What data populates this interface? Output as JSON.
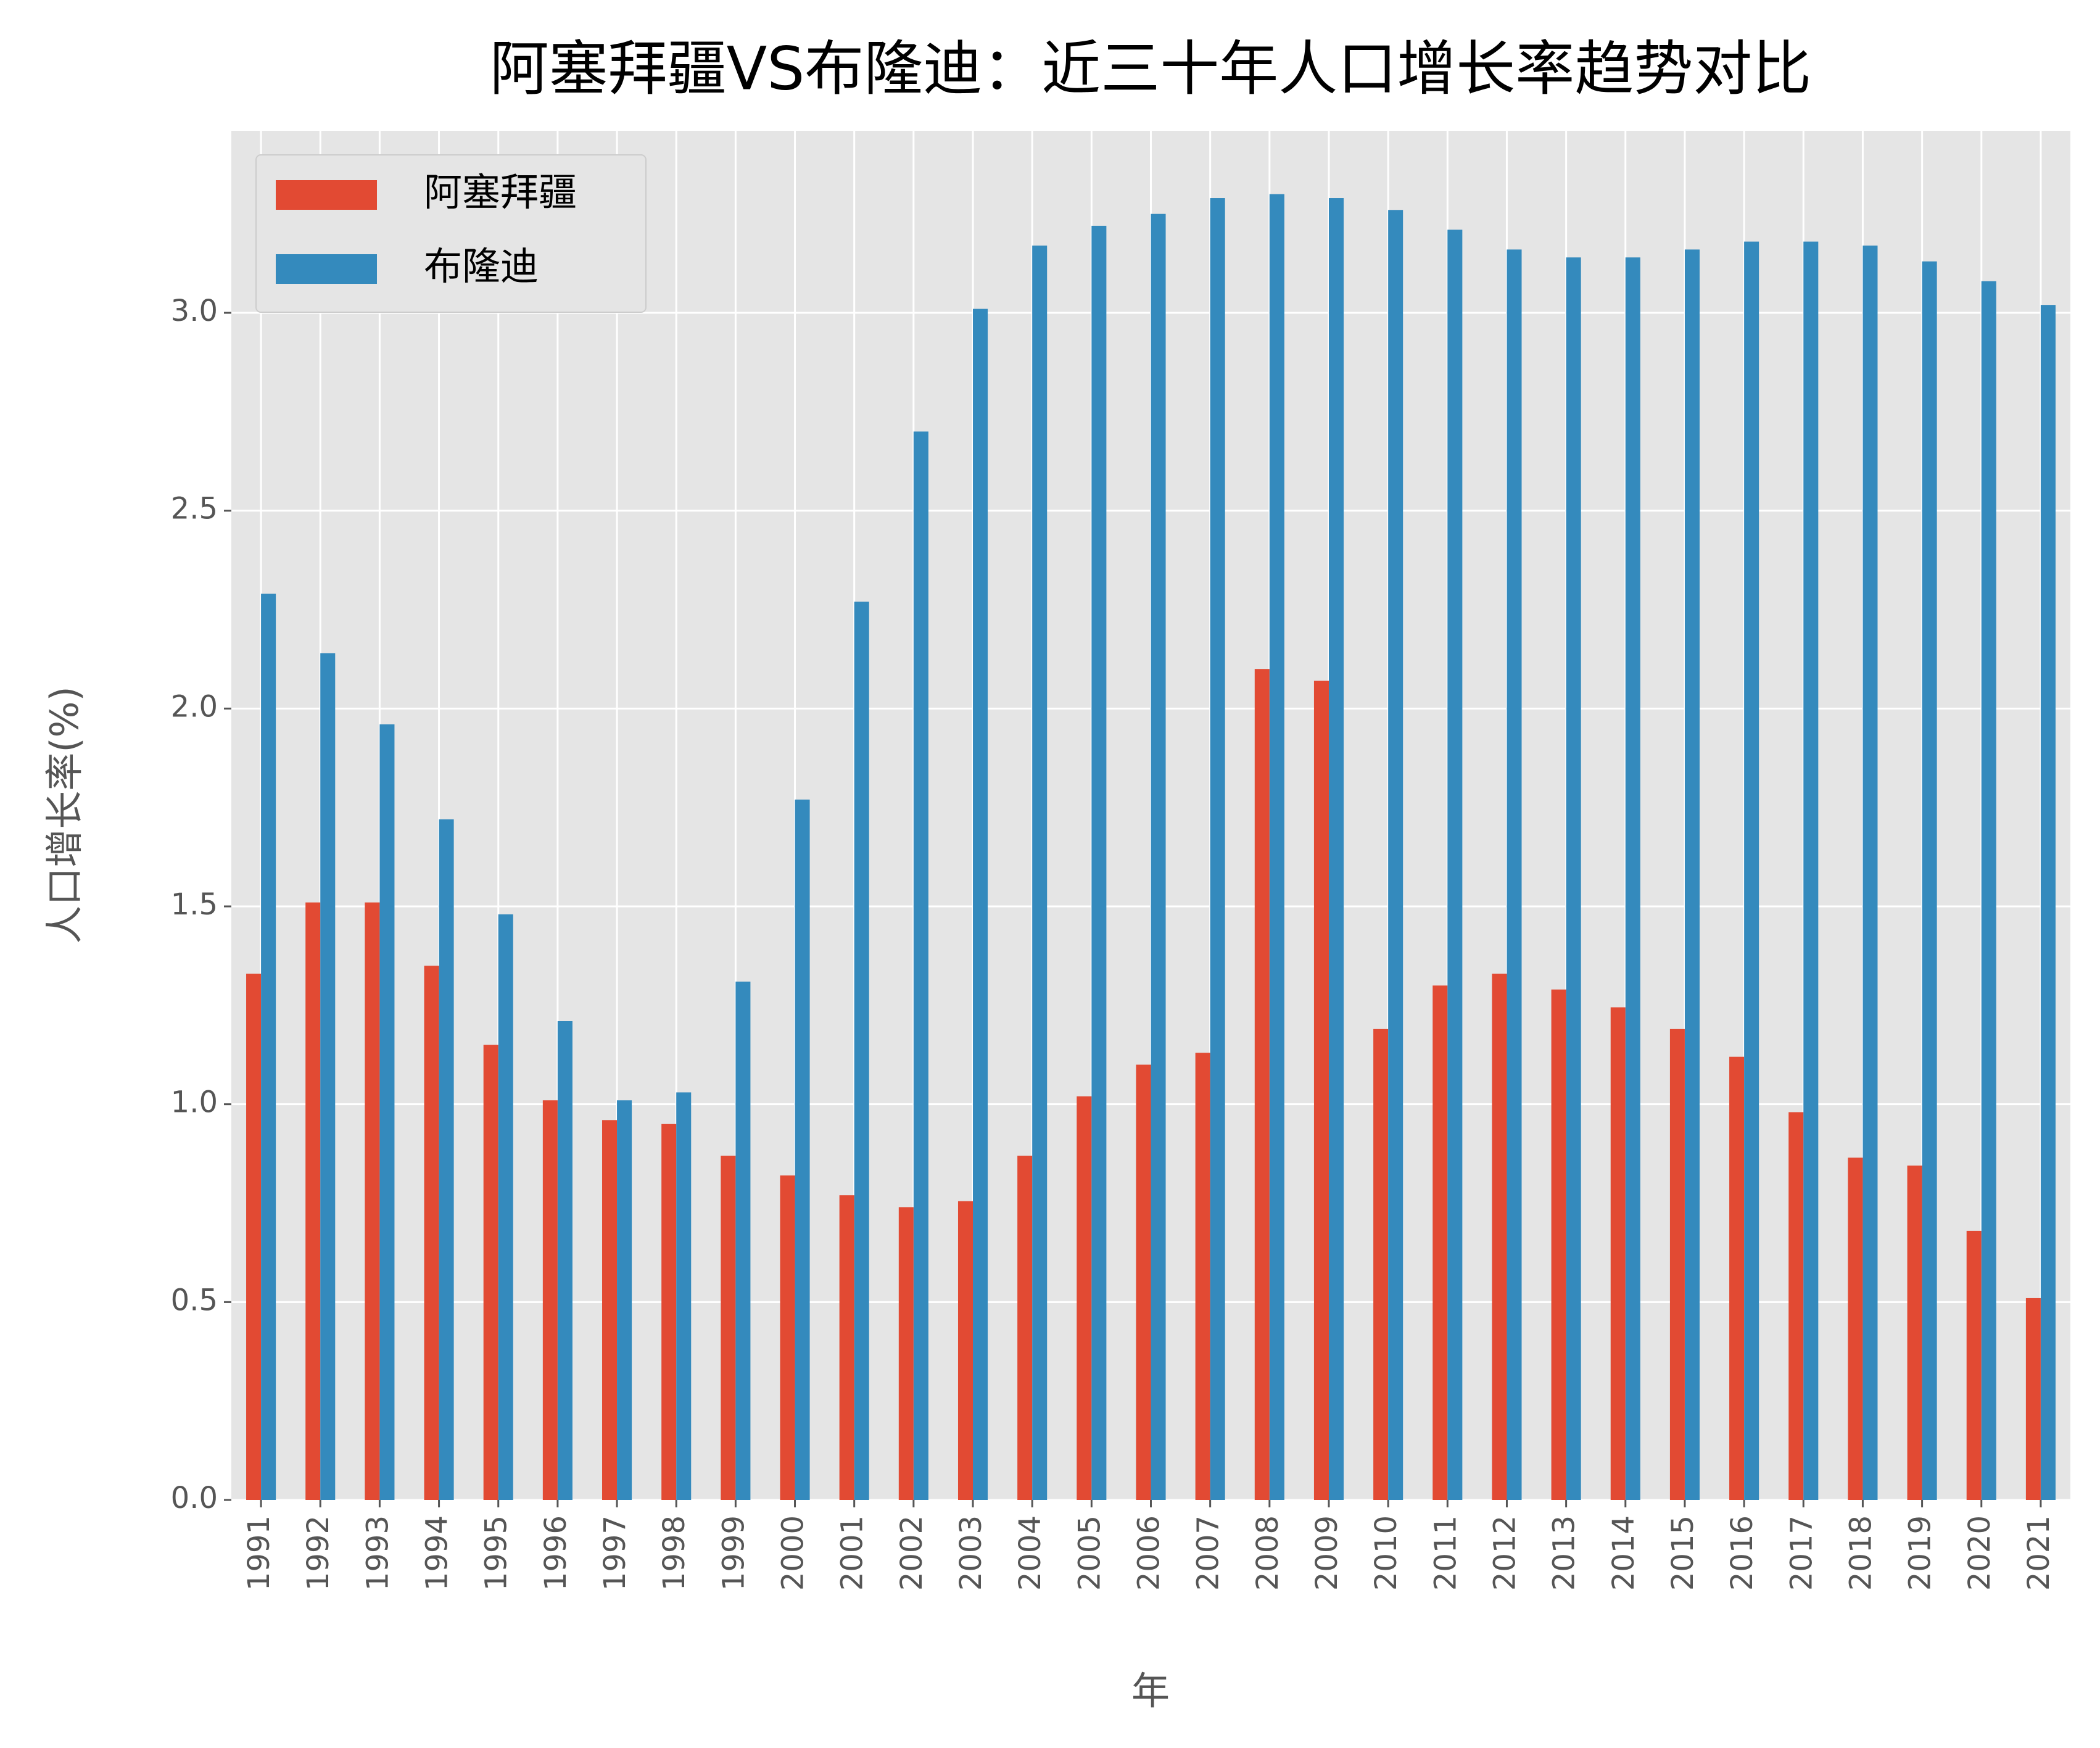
{
  "chart_data": {
    "type": "bar",
    "title": "阿塞拜疆VS布隆迪：近三十年人口增长率趋势对比",
    "x_label": "年",
    "y_label": "人口增长率(%)",
    "categories": [
      "1991",
      "1992",
      "1993",
      "1994",
      "1995",
      "1996",
      "1997",
      "1998",
      "1999",
      "2000",
      "2001",
      "2002",
      "2003",
      "2004",
      "2005",
      "2006",
      "2007",
      "2008",
      "2009",
      "2010",
      "2011",
      "2012",
      "2013",
      "2014",
      "2015",
      "2016",
      "2017",
      "2018",
      "2019",
      "2020",
      "2021"
    ],
    "series": [
      {
        "name": "阿塞拜疆",
        "color": "#e24a33",
        "values": [
          1.33,
          1.51,
          1.51,
          1.35,
          1.15,
          1.01,
          0.96,
          0.95,
          0.87,
          0.82,
          0.77,
          0.74,
          0.755,
          0.87,
          1.02,
          1.1,
          1.13,
          2.1,
          2.07,
          1.19,
          1.3,
          1.33,
          1.29,
          1.245,
          1.19,
          1.12,
          0.98,
          0.865,
          0.845,
          0.68,
          0.51
        ]
      },
      {
        "name": "布隆迪",
        "color": "#348abd",
        "values": [
          2.29,
          2.14,
          1.96,
          1.72,
          1.48,
          1.21,
          1.01,
          1.03,
          1.31,
          1.77,
          2.27,
          2.7,
          3.01,
          3.17,
          3.22,
          3.25,
          3.29,
          3.3,
          3.29,
          3.26,
          3.21,
          3.16,
          3.14,
          3.14,
          3.16,
          3.18,
          3.18,
          3.17,
          3.13,
          3.08,
          3.02
        ]
      }
    ],
    "ylim": [
      0,
      3.46
    ],
    "yticks": [
      {
        "value": 0,
        "label": "0.0"
      },
      {
        "value": 0.5,
        "label": "0.5"
      },
      {
        "value": 1,
        "label": "1.0"
      },
      {
        "value": 1.5,
        "label": "1.5"
      },
      {
        "value": 2,
        "label": "2.0"
      },
      {
        "value": 2.5,
        "label": "2.5"
      },
      {
        "value": 3,
        "label": "3.0"
      }
    ],
    "grid": true,
    "legend": "upper-left"
  }
}
